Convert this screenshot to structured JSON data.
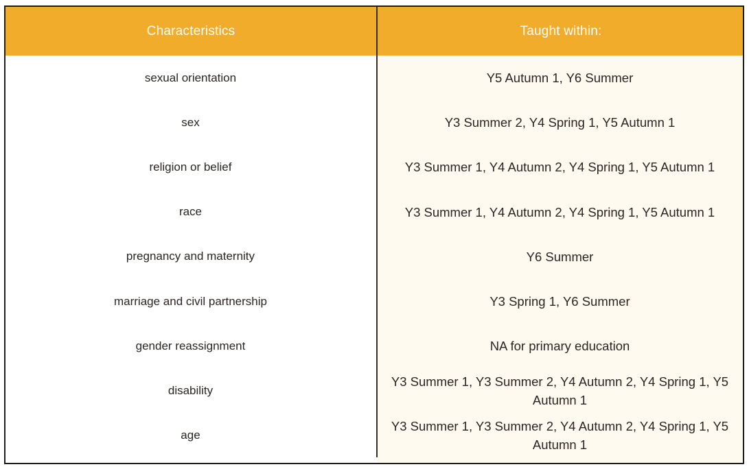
{
  "table": {
    "headers": {
      "characteristics": "Characteristics",
      "taught_within": "Taught within:"
    },
    "rows": [
      {
        "characteristic": "sexual orientation",
        "taught": "Y5 Autumn 1, Y6 Summer"
      },
      {
        "characteristic": "sex",
        "taught": "Y3 Summer 2, Y4 Spring 1, Y5 Autumn 1"
      },
      {
        "characteristic": "religion or belief",
        "taught": "Y3 Summer 1, Y4 Autumn 2, Y4 Spring 1, Y5 Autumn 1"
      },
      {
        "characteristic": "race",
        "taught": "Y3 Summer 1, Y4 Autumn 2, Y4 Spring 1, Y5 Autumn 1"
      },
      {
        "characteristic": "pregnancy and maternity",
        "taught": "Y6 Summer"
      },
      {
        "characteristic": "marriage and civil partnership",
        "taught": "Y3 Spring 1, Y6 Summer"
      },
      {
        "characteristic": "gender reassignment",
        "taught": "NA for primary education"
      },
      {
        "characteristic": "disability",
        "taught": "Y3 Summer 1, Y3 Summer 2, Y4 Autumn 2, Y4 Spring 1, Y5 Autumn 1"
      },
      {
        "characteristic": "age",
        "taught": "Y3 Summer 1, Y3 Summer 2, Y4 Autumn 2, Y4 Spring 1, Y5 Autumn 1"
      }
    ]
  },
  "colors": {
    "header_bg": "#f0ac2a",
    "header_text": "#ffffff",
    "right_column_bg": "#fffaf0",
    "border": "#1f1b16"
  }
}
